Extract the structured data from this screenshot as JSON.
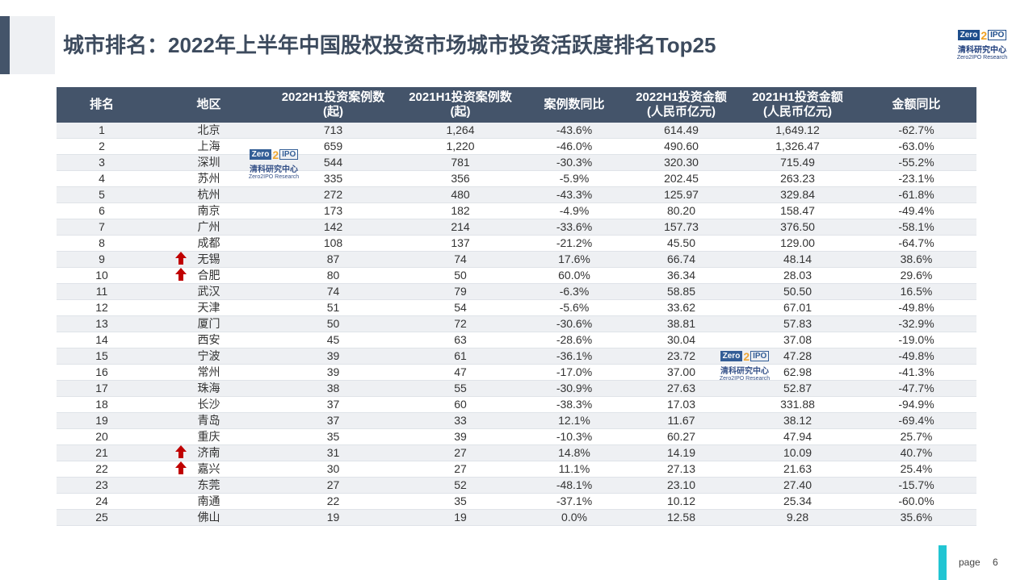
{
  "header": {
    "title": "城市排名：2022年上半年中国股权投资市场城市投资活跃度排名Top25"
  },
  "logo": {
    "brand_left": "Zero",
    "brand_num": "2",
    "brand_right": "IPO",
    "name_cn": "清科研究中心",
    "name_en": "Zero2IPO Research"
  },
  "table": {
    "columns": [
      "排名",
      "地区",
      "2022H1投资案例数\n(起)",
      "2021H1投资案例数\n(起)",
      "案例数同比",
      "2022H1投资金额\n(人民币亿元)",
      "2021H1投资金额\n(人民币亿元)",
      "金额同比"
    ],
    "rows": [
      [
        "1",
        "北京",
        "713",
        "1,264",
        "-43.6%",
        "614.49",
        "1,649.12",
        "-62.7%"
      ],
      [
        "2",
        "上海",
        "659",
        "1,220",
        "-46.0%",
        "490.60",
        "1,326.47",
        "-63.0%"
      ],
      [
        "3",
        "深圳",
        "544",
        "781",
        "-30.3%",
        "320.30",
        "715.49",
        "-55.2%"
      ],
      [
        "4",
        "苏州",
        "335",
        "356",
        "-5.9%",
        "202.45",
        "263.23",
        "-23.1%"
      ],
      [
        "5",
        "杭州",
        "272",
        "480",
        "-43.3%",
        "125.97",
        "329.84",
        "-61.8%"
      ],
      [
        "6",
        "南京",
        "173",
        "182",
        "-4.9%",
        "80.20",
        "158.47",
        "-49.4%"
      ],
      [
        "7",
        "广州",
        "142",
        "214",
        "-33.6%",
        "157.73",
        "376.50",
        "-58.1%"
      ],
      [
        "8",
        "成都",
        "108",
        "137",
        "-21.2%",
        "45.50",
        "129.00",
        "-64.7%"
      ],
      [
        "9",
        "无锡",
        "87",
        "74",
        "17.6%",
        "66.74",
        "48.14",
        "38.6%"
      ],
      [
        "10",
        "合肥",
        "80",
        "50",
        "60.0%",
        "36.34",
        "28.03",
        "29.6%"
      ],
      [
        "11",
        "武汉",
        "74",
        "79",
        "-6.3%",
        "58.85",
        "50.50",
        "16.5%"
      ],
      [
        "12",
        "天津",
        "51",
        "54",
        "-5.6%",
        "33.62",
        "67.01",
        "-49.8%"
      ],
      [
        "13",
        "厦门",
        "50",
        "72",
        "-30.6%",
        "38.81",
        "57.83",
        "-32.9%"
      ],
      [
        "14",
        "西安",
        "45",
        "63",
        "-28.6%",
        "30.04",
        "37.08",
        "-19.0%"
      ],
      [
        "15",
        "宁波",
        "39",
        "61",
        "-36.1%",
        "23.72",
        "47.28",
        "-49.8%"
      ],
      [
        "16",
        "常州",
        "39",
        "47",
        "-17.0%",
        "37.00",
        "62.98",
        "-41.3%"
      ],
      [
        "17",
        "珠海",
        "38",
        "55",
        "-30.9%",
        "27.63",
        "52.87",
        "-47.7%"
      ],
      [
        "18",
        "长沙",
        "37",
        "60",
        "-38.3%",
        "17.03",
        "331.88",
        "-94.9%"
      ],
      [
        "19",
        "青岛",
        "37",
        "33",
        "12.1%",
        "11.67",
        "38.12",
        "-69.4%"
      ],
      [
        "20",
        "重庆",
        "35",
        "39",
        "-10.3%",
        "60.27",
        "47.94",
        "25.7%"
      ],
      [
        "21",
        "济南",
        "31",
        "27",
        "14.8%",
        "14.19",
        "10.09",
        "40.7%"
      ],
      [
        "22",
        "嘉兴",
        "30",
        "27",
        "11.1%",
        "27.13",
        "21.63",
        "25.4%"
      ],
      [
        "23",
        "东莞",
        "27",
        "52",
        "-48.1%",
        "23.10",
        "27.40",
        "-15.7%"
      ],
      [
        "24",
        "南通",
        "22",
        "35",
        "-37.1%",
        "10.12",
        "25.34",
        "-60.0%"
      ],
      [
        "25",
        "佛山",
        "19",
        "19",
        "0.0%",
        "12.58",
        "9.28",
        "35.6%"
      ]
    ]
  },
  "footer": {
    "page_label": "page",
    "page_number": "6"
  }
}
